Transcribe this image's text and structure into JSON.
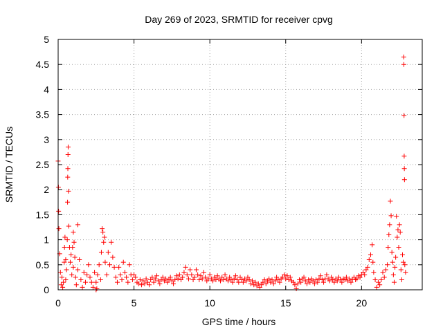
{
  "chart_data": {
    "type": "scatter",
    "title": "Day 269 of 2023, SRMTID for receiver cpvg",
    "xlabel": "GPS time / hours",
    "ylabel": "SRMTID / TECUs",
    "xlim": [
      0,
      24
    ],
    "ylim": [
      0,
      5
    ],
    "grid": true,
    "marker": "+",
    "marker_color": "#ff0000",
    "x_ticks": [
      0,
      5,
      10,
      15,
      20
    ],
    "x_tick_labels": [
      "0",
      "5",
      "10",
      "15",
      "20"
    ],
    "y_ticks": [
      0,
      0.5,
      1,
      1.5,
      2,
      2.5,
      3,
      3.5,
      4,
      4.5,
      5
    ],
    "y_tick_labels": [
      "0",
      "0.5",
      "1",
      "1.5",
      "2",
      "2.5",
      "3",
      "3.5",
      "4",
      "4.5",
      "5"
    ],
    "series": [
      {
        "name": "SRMTID",
        "points": [
          [
            0.0,
            2.57
          ],
          [
            0.02,
            2.05
          ],
          [
            0.03,
            1.57
          ],
          [
            0.05,
            1.22
          ],
          [
            0.1,
            0.72
          ],
          [
            0.15,
            0.35
          ],
          [
            0.2,
            0.1
          ],
          [
            0.25,
            0.25
          ],
          [
            0.3,
            0.05
          ],
          [
            0.35,
            0.15
          ],
          [
            0.4,
            0.55
          ],
          [
            0.42,
            0.85
          ],
          [
            0.45,
            1.05
          ],
          [
            0.5,
            0.6
          ],
          [
            0.5,
            0.2
          ],
          [
            0.55,
            0.4
          ],
          [
            0.6,
            1.0
          ],
          [
            0.62,
            1.75
          ],
          [
            0.63,
            2.25
          ],
          [
            0.64,
            2.42
          ],
          [
            0.65,
            2.7
          ],
          [
            0.66,
            2.85
          ],
          [
            0.68,
            1.97
          ],
          [
            0.7,
            1.27
          ],
          [
            0.75,
            0.85
          ],
          [
            0.8,
            0.55
          ],
          [
            0.85,
            0.7
          ],
          [
            0.9,
            0.3
          ],
          [
            0.95,
            0.85
          ],
          [
            1.0,
            1.15
          ],
          [
            1.0,
            0.45
          ],
          [
            1.05,
            0.95
          ],
          [
            1.1,
            0.65
          ],
          [
            1.15,
            0.25
          ],
          [
            1.2,
            0.1
          ],
          [
            1.3,
            1.3
          ],
          [
            1.3,
            0.4
          ],
          [
            1.4,
            0.6
          ],
          [
            1.5,
            0.2
          ],
          [
            1.6,
            0.05
          ],
          [
            1.7,
            0.35
          ],
          [
            1.8,
            0.15
          ],
          [
            1.9,
            0.3
          ],
          [
            2.0,
            0.5
          ],
          [
            2.1,
            0.25
          ],
          [
            2.2,
            0.15
          ],
          [
            2.3,
            0.05
          ],
          [
            2.4,
            0.35
          ],
          [
            2.5,
            0.15
          ],
          [
            2.5,
            0.0
          ],
          [
            2.55,
            0.02
          ],
          [
            2.6,
            0.3
          ],
          [
            2.7,
            0.5
          ],
          [
            2.8,
            0.2
          ],
          [
            2.85,
            0.75
          ],
          [
            2.9,
            1.22
          ],
          [
            2.95,
            1.15
          ],
          [
            3.0,
            0.95
          ],
          [
            3.05,
            1.05
          ],
          [
            3.1,
            0.55
          ],
          [
            3.2,
            0.3
          ],
          [
            3.3,
            0.75
          ],
          [
            3.4,
            0.5
          ],
          [
            3.5,
            0.95
          ],
          [
            3.6,
            0.65
          ],
          [
            3.7,
            0.45
          ],
          [
            3.8,
            0.25
          ],
          [
            3.9,
            0.15
          ],
          [
            4.0,
            0.45
          ],
          [
            4.1,
            0.3
          ],
          [
            4.2,
            0.2
          ],
          [
            4.3,
            0.55
          ],
          [
            4.4,
            0.35
          ],
          [
            4.5,
            0.25
          ],
          [
            4.6,
            0.15
          ],
          [
            4.7,
            0.5
          ],
          [
            4.8,
            0.3
          ],
          [
            4.9,
            0.2
          ],
          [
            5.0,
            0.3
          ],
          [
            5.1,
            0.25
          ],
          [
            5.2,
            0.15
          ],
          [
            5.3,
            0.12
          ],
          [
            5.4,
            0.2
          ],
          [
            5.5,
            0.1
          ],
          [
            5.6,
            0.18
          ],
          [
            5.7,
            0.12
          ],
          [
            5.8,
            0.22
          ],
          [
            5.9,
            0.15
          ],
          [
            6.0,
            0.1
          ],
          [
            6.1,
            0.2
          ],
          [
            6.2,
            0.25
          ],
          [
            6.3,
            0.15
          ],
          [
            6.4,
            0.22
          ],
          [
            6.5,
            0.28
          ],
          [
            6.6,
            0.18
          ],
          [
            6.7,
            0.12
          ],
          [
            6.8,
            0.2
          ],
          [
            6.9,
            0.25
          ],
          [
            7.0,
            0.18
          ],
          [
            7.1,
            0.22
          ],
          [
            7.2,
            0.15
          ],
          [
            7.3,
            0.2
          ],
          [
            7.4,
            0.25
          ],
          [
            7.5,
            0.18
          ],
          [
            7.6,
            0.12
          ],
          [
            7.7,
            0.2
          ],
          [
            7.8,
            0.28
          ],
          [
            7.9,
            0.22
          ],
          [
            8.0,
            0.3
          ],
          [
            8.1,
            0.2
          ],
          [
            8.2,
            0.25
          ],
          [
            8.3,
            0.35
          ],
          [
            8.4,
            0.45
          ],
          [
            8.5,
            0.3
          ],
          [
            8.6,
            0.22
          ],
          [
            8.7,
            0.4
          ],
          [
            8.8,
            0.3
          ],
          [
            8.9,
            0.2
          ],
          [
            9.0,
            0.25
          ],
          [
            9.1,
            0.4
          ],
          [
            9.2,
            0.3
          ],
          [
            9.3,
            0.2
          ],
          [
            9.4,
            0.28
          ],
          [
            9.5,
            0.22
          ],
          [
            9.6,
            0.35
          ],
          [
            9.7,
            0.25
          ],
          [
            9.8,
            0.18
          ],
          [
            9.9,
            0.22
          ],
          [
            10.0,
            0.3
          ],
          [
            10.1,
            0.22
          ],
          [
            10.2,
            0.18
          ],
          [
            10.3,
            0.25
          ],
          [
            10.4,
            0.2
          ],
          [
            10.5,
            0.28
          ],
          [
            10.6,
            0.22
          ],
          [
            10.7,
            0.18
          ],
          [
            10.8,
            0.25
          ],
          [
            10.9,
            0.2
          ],
          [
            11.0,
            0.3
          ],
          [
            11.1,
            0.22
          ],
          [
            11.2,
            0.18
          ],
          [
            11.3,
            0.25
          ],
          [
            11.4,
            0.2
          ],
          [
            11.5,
            0.15
          ],
          [
            11.6,
            0.22
          ],
          [
            11.7,
            0.28
          ],
          [
            11.8,
            0.2
          ],
          [
            11.9,
            0.15
          ],
          [
            12.0,
            0.25
          ],
          [
            12.1,
            0.2
          ],
          [
            12.2,
            0.15
          ],
          [
            12.3,
            0.22
          ],
          [
            12.4,
            0.18
          ],
          [
            12.5,
            0.25
          ],
          [
            12.6,
            0.2
          ],
          [
            12.7,
            0.12
          ],
          [
            12.8,
            0.18
          ],
          [
            12.9,
            0.1
          ],
          [
            13.0,
            0.15
          ],
          [
            13.1,
            0.08
          ],
          [
            13.2,
            0.12
          ],
          [
            13.3,
            0.05
          ],
          [
            13.4,
            0.1
          ],
          [
            13.5,
            0.15
          ],
          [
            13.6,
            0.2
          ],
          [
            13.7,
            0.12
          ],
          [
            13.8,
            0.18
          ],
          [
            13.9,
            0.22
          ],
          [
            14.0,
            0.15
          ],
          [
            14.1,
            0.2
          ],
          [
            14.2,
            0.12
          ],
          [
            14.3,
            0.18
          ],
          [
            14.4,
            0.25
          ],
          [
            14.5,
            0.2
          ],
          [
            14.6,
            0.15
          ],
          [
            14.7,
            0.22
          ],
          [
            14.8,
            0.25
          ],
          [
            14.9,
            0.3
          ],
          [
            15.0,
            0.22
          ],
          [
            15.1,
            0.28
          ],
          [
            15.2,
            0.2
          ],
          [
            15.3,
            0.25
          ],
          [
            15.4,
            0.18
          ],
          [
            15.5,
            0.15
          ],
          [
            15.6,
            0.1
          ],
          [
            15.7,
            0.02
          ],
          [
            15.8,
            0.12
          ],
          [
            15.9,
            0.2
          ],
          [
            16.0,
            0.15
          ],
          [
            16.1,
            0.22
          ],
          [
            16.2,
            0.25
          ],
          [
            16.3,
            0.18
          ],
          [
            16.4,
            0.12
          ],
          [
            16.5,
            0.2
          ],
          [
            16.6,
            0.15
          ],
          [
            16.7,
            0.22
          ],
          [
            16.8,
            0.18
          ],
          [
            16.9,
            0.12
          ],
          [
            17.0,
            0.2
          ],
          [
            17.1,
            0.15
          ],
          [
            17.2,
            0.22
          ],
          [
            17.3,
            0.28
          ],
          [
            17.4,
            0.2
          ],
          [
            17.5,
            0.15
          ],
          [
            17.6,
            0.22
          ],
          [
            17.7,
            0.3
          ],
          [
            17.8,
            0.22
          ],
          [
            17.9,
            0.18
          ],
          [
            18.0,
            0.25
          ],
          [
            18.1,
            0.2
          ],
          [
            18.2,
            0.15
          ],
          [
            18.3,
            0.22
          ],
          [
            18.4,
            0.18
          ],
          [
            18.5,
            0.25
          ],
          [
            18.6,
            0.2
          ],
          [
            18.7,
            0.15
          ],
          [
            18.8,
            0.22
          ],
          [
            18.9,
            0.2
          ],
          [
            19.0,
            0.25
          ],
          [
            19.1,
            0.18
          ],
          [
            19.2,
            0.22
          ],
          [
            19.3,
            0.15
          ],
          [
            19.4,
            0.2
          ],
          [
            19.5,
            0.25
          ],
          [
            19.6,
            0.2
          ],
          [
            19.7,
            0.22
          ],
          [
            19.8,
            0.28
          ],
          [
            19.9,
            0.25
          ],
          [
            20.0,
            0.3
          ],
          [
            20.1,
            0.35
          ],
          [
            20.2,
            0.3
          ],
          [
            20.3,
            0.4
          ],
          [
            20.4,
            0.45
          ],
          [
            20.5,
            0.6
          ],
          [
            20.6,
            0.7
          ],
          [
            20.7,
            0.9
          ],
          [
            20.75,
            0.55
          ],
          [
            20.8,
            0.35
          ],
          [
            20.9,
            0.2
          ],
          [
            21.0,
            0.05
          ],
          [
            21.1,
            0.15
          ],
          [
            21.2,
            0.1
          ],
          [
            21.3,
            0.2
          ],
          [
            21.4,
            0.35
          ],
          [
            21.5,
            0.25
          ],
          [
            21.6,
            0.4
          ],
          [
            21.7,
            0.5
          ],
          [
            21.75,
            0.85
          ],
          [
            21.8,
            1.1
          ],
          [
            21.85,
            1.3
          ],
          [
            21.9,
            1.77
          ],
          [
            21.95,
            1.48
          ],
          [
            22.0,
            0.75
          ],
          [
            22.05,
            0.55
          ],
          [
            22.1,
            0.3
          ],
          [
            22.15,
            0.15
          ],
          [
            22.2,
            0.45
          ],
          [
            22.25,
            0.65
          ],
          [
            22.3,
            1.47
          ],
          [
            22.35,
            1.05
          ],
          [
            22.4,
            1.2
          ],
          [
            22.45,
            0.85
          ],
          [
            22.5,
            1.3
          ],
          [
            22.55,
            1.15
          ],
          [
            22.6,
            0.4
          ],
          [
            22.65,
            0.2
          ],
          [
            22.7,
            0.7
          ],
          [
            22.75,
            0.55
          ],
          [
            22.78,
            4.65
          ],
          [
            22.79,
            4.5
          ],
          [
            22.8,
            3.48
          ],
          [
            22.81,
            2.67
          ],
          [
            22.82,
            2.42
          ],
          [
            22.83,
            2.2
          ],
          [
            22.85,
            0.5
          ],
          [
            22.9,
            0.35
          ]
        ]
      }
    ]
  }
}
